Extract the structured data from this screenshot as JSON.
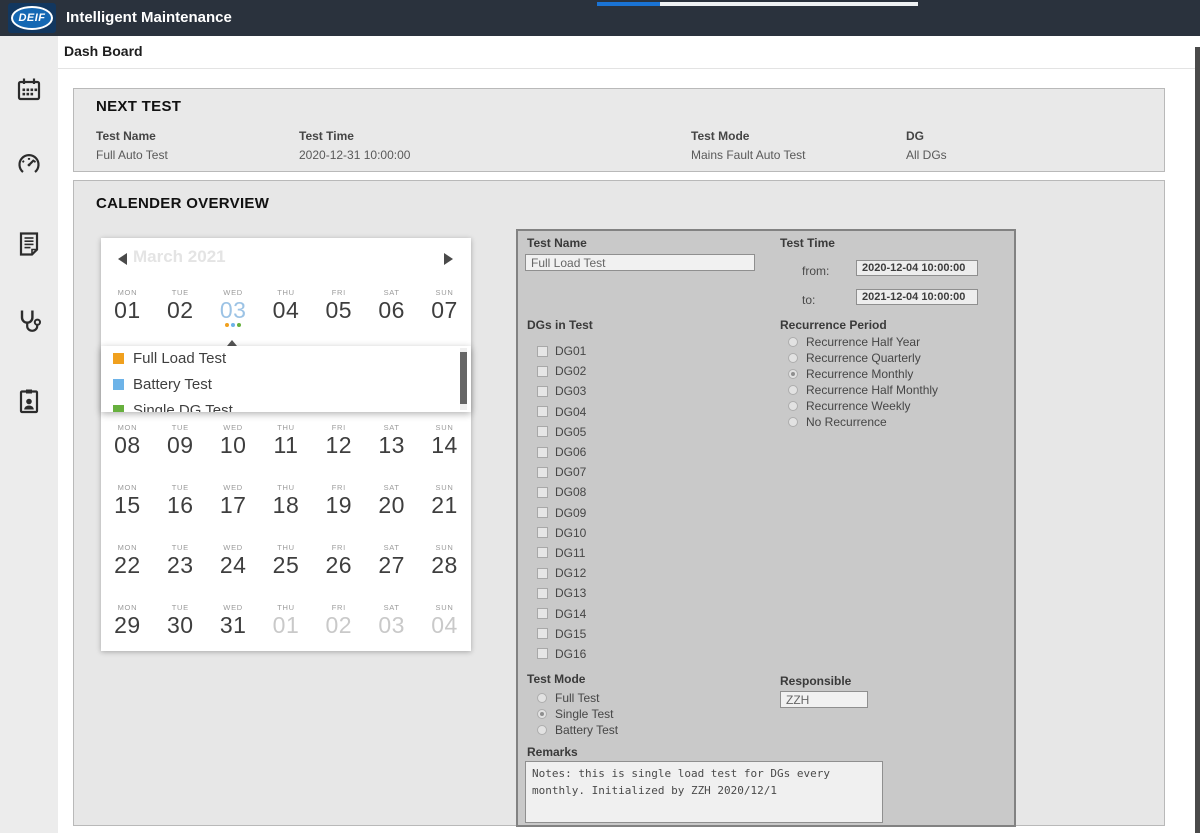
{
  "app": {
    "brand": "DEIF",
    "title": "Intelligent Maintenance",
    "breadcrumb": "Dash Board"
  },
  "colors": {
    "header_bg": "#2a323d",
    "accent_blue": "#1a73d4",
    "selected_date_blue": "#9cc3e5",
    "form_panel_bg": "#c9c9c9",
    "section_bg": "#e8e8e8"
  },
  "sidebar": {
    "icons": [
      {
        "name": "calendar-icon"
      },
      {
        "name": "gauge-icon"
      },
      {
        "name": "report-icon"
      },
      {
        "name": "stethoscope-icon"
      },
      {
        "name": "operator-badge-icon"
      }
    ]
  },
  "next_test": {
    "title": "NEXT TEST",
    "fields": [
      {
        "label": "Test Name",
        "value": "Full Auto Test"
      },
      {
        "label": "Test Time",
        "value": "2020-12-31 10:00:00"
      },
      {
        "label": "Test Mode",
        "value": "Mains Fault Auto Test"
      },
      {
        "label": "DG",
        "value": "All DGs"
      }
    ]
  },
  "calendar_section": {
    "title": "CALENDER OVERVIEW"
  },
  "calendar": {
    "month_title": "March 2021",
    "weekdays": [
      "MON",
      "TUE",
      "WED",
      "THU",
      "FRI",
      "SAT",
      "SUN"
    ],
    "weeks": [
      [
        {
          "d": "01"
        },
        {
          "d": "02"
        },
        {
          "d": "03",
          "selected": true,
          "dots": true
        },
        {
          "d": "04"
        },
        {
          "d": "05"
        },
        {
          "d": "06"
        },
        {
          "d": "07"
        }
      ],
      [
        {
          "d": "08"
        },
        {
          "d": "09"
        },
        {
          "d": "10"
        },
        {
          "d": "11"
        },
        {
          "d": "12"
        },
        {
          "d": "13"
        },
        {
          "d": "14"
        }
      ],
      [
        {
          "d": "15"
        },
        {
          "d": "16"
        },
        {
          "d": "17"
        },
        {
          "d": "18"
        },
        {
          "d": "19"
        },
        {
          "d": "20"
        },
        {
          "d": "21"
        }
      ],
      [
        {
          "d": "22"
        },
        {
          "d": "23"
        },
        {
          "d": "24"
        },
        {
          "d": "25"
        },
        {
          "d": "26"
        },
        {
          "d": "27"
        },
        {
          "d": "28"
        }
      ],
      [
        {
          "d": "29"
        },
        {
          "d": "30"
        },
        {
          "d": "31"
        },
        {
          "d": "01",
          "muted": true
        },
        {
          "d": "02",
          "muted": true
        },
        {
          "d": "03",
          "muted": true
        },
        {
          "d": "04",
          "muted": true
        }
      ]
    ],
    "event_dot_colors": [
      "#f0a01e",
      "#6db3e8",
      "#67b03e"
    ],
    "legend": [
      {
        "color": "#f0a01e",
        "label": "Full Load Test"
      },
      {
        "color": "#6db3e8",
        "label": "Battery Test"
      },
      {
        "color": "#67b03e",
        "label": "Single DG Test"
      }
    ]
  },
  "form": {
    "test_name": {
      "label": "Test Name",
      "value": "Full Load Test"
    },
    "test_time": {
      "label": "Test Time",
      "from_label": "from:",
      "from_value": "2020-12-04 10:00:00",
      "to_label": "to:",
      "to_value": "2021-12-04 10:00:00"
    },
    "dgs_in_test": {
      "label": "DGs in Test",
      "options": [
        "DG01",
        "DG02",
        "DG03",
        "DG04",
        "DG05",
        "DG06",
        "DG07",
        "DG08",
        "DG09",
        "DG10",
        "DG11",
        "DG12",
        "DG13",
        "DG14",
        "DG15",
        "DG16"
      ],
      "checked": []
    },
    "recurrence": {
      "label": "Recurrence Period",
      "options": [
        "Recurrence Half Year",
        "Recurrence Quarterly",
        "Recurrence Monthly",
        "Recurrence Half Monthly",
        "Recurrence Weekly",
        "No Recurrence"
      ],
      "selected_index": 2
    },
    "test_mode": {
      "label": "Test Mode",
      "options": [
        "Full Test",
        "Single Test",
        "Battery Test"
      ],
      "selected_index": 1
    },
    "responsible": {
      "label": "Responsible",
      "value": "ZZH"
    },
    "remarks": {
      "label": "Remarks",
      "value": "Notes: this is single load test for DGs every\nmonthly. Initialized by ZZH 2020/12/1"
    }
  }
}
